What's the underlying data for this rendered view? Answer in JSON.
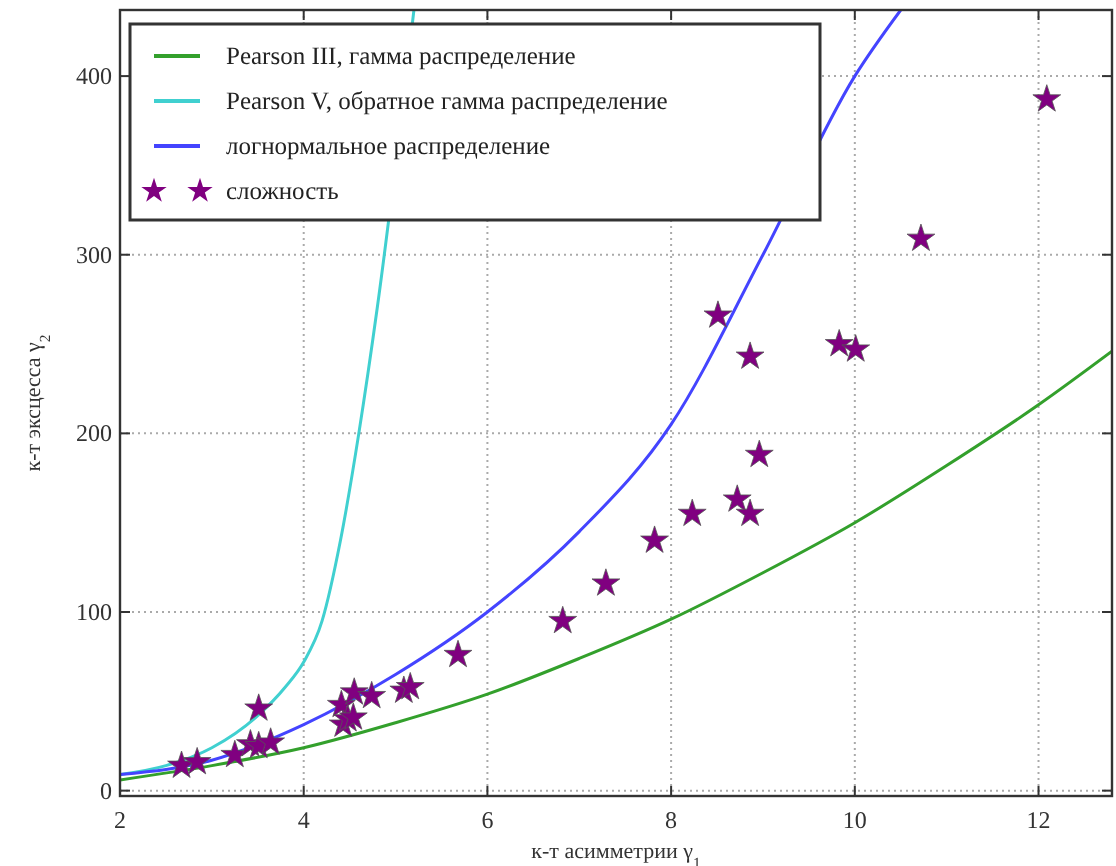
{
  "chart_data": {
    "type": "line",
    "xlabel": "к-т асимметрии γ$_{1}$",
    "ylabel": "к-т эксцесса γ$_{2}$",
    "xlim": [
      2,
      12.8
    ],
    "ylim": [
      -3,
      437
    ],
    "xticks": [
      2,
      4,
      6,
      8,
      10,
      12
    ],
    "yticks": [
      0,
      100,
      200,
      300,
      400
    ],
    "grid": true,
    "legend": "top left",
    "series": [
      {
        "name": "Pearson III, гамма распределение",
        "color": "#33a02c",
        "marker": "none",
        "x": [
          2,
          3,
          4,
          5,
          6,
          7,
          8,
          9,
          10,
          11,
          12,
          12.8
        ],
        "values": [
          6,
          14,
          24,
          38,
          54,
          74,
          96,
          122,
          150,
          182,
          216,
          246
        ]
      },
      {
        "name": "Pearson V, обратное гамма распределение",
        "color": "#40d0d0",
        "marker": "none",
        "x": [
          2,
          2.5,
          3,
          3.5,
          3.8,
          4,
          4.2,
          4.4,
          4.6,
          4.8,
          5.2
        ],
        "values": [
          9,
          14,
          24,
          42,
          58,
          72,
          95,
          140,
          200,
          270,
          437
        ]
      },
      {
        "name": "логнормальное распределение",
        "color": "#4444ff",
        "marker": "none",
        "x": [
          2,
          3,
          4,
          5,
          6,
          7,
          8,
          9,
          10,
          10.5
        ],
        "values": [
          9,
          17,
          37,
          65,
          100,
          145,
          205,
          300,
          400,
          437
        ]
      },
      {
        "name": "сложность",
        "type": "scatter",
        "color": "#800080",
        "marker": "star",
        "x": [
          2.67,
          2.84,
          3.25,
          3.42,
          3.51,
          3.64,
          3.51,
          4.41,
          4.43,
          4.48,
          4.54,
          4.55,
          4.74,
          5.09,
          5.16,
          5.68,
          6.82,
          7.29,
          7.82,
          8.23,
          8.72,
          8.86,
          8.96,
          8.86,
          8.51,
          9.83,
          10.01,
          10.72,
          12.09
        ],
        "values": [
          14,
          16,
          20,
          26,
          25,
          27,
          46,
          48,
          37,
          40,
          41,
          55,
          53,
          56,
          58,
          76,
          95,
          116,
          140,
          155,
          163,
          155,
          188,
          243,
          266,
          250,
          247,
          309,
          387
        ]
      }
    ]
  }
}
